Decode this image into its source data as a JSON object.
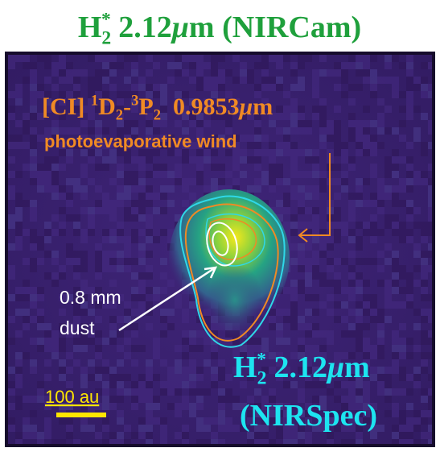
{
  "title": [
    {
      "t": "H"
    },
    {
      "t": "2",
      "pos": "sub"
    },
    {
      "t": "*",
      "pos": "sup"
    },
    {
      "t": " 2.12"
    },
    {
      "t": "μ",
      "italic": true
    },
    {
      "t": "m (NIRCam)"
    }
  ],
  "annotations": {
    "ci_line": [
      {
        "t": "[CI] "
      },
      {
        "t": "1",
        "pos": "sup"
      },
      {
        "t": "D"
      },
      {
        "t": "2",
        "pos": "sub"
      },
      {
        "t": "-"
      },
      {
        "t": "3",
        "pos": "sup"
      },
      {
        "t": "P"
      },
      {
        "t": "2",
        "pos": "sub"
      },
      {
        "t": "  0.9853"
      },
      {
        "t": "μ",
        "italic": true
      },
      {
        "t": "m"
      }
    ],
    "ci_note": "photoevaporative wind",
    "dust": [
      "0.8 mm",
      "dust"
    ],
    "nirspec_line1": [
      {
        "t": "H"
      },
      {
        "t": "2",
        "pos": "sub"
      },
      {
        "t": "*",
        "pos": "sup"
      },
      {
        "t": " 2.12"
      },
      {
        "t": "μ",
        "italic": true
      },
      {
        "t": "m"
      }
    ],
    "nirspec_line2": "(NIRSpec)",
    "scale_bar": "100 au"
  }
}
